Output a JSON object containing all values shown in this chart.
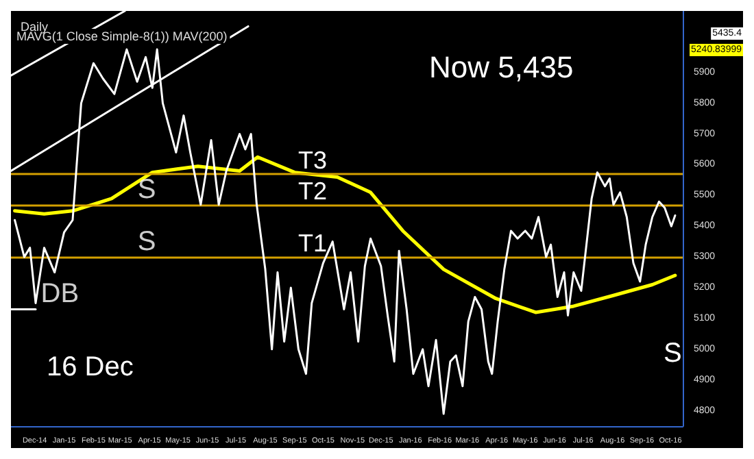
{
  "chart_data": {
    "type": "line",
    "title": "Daily",
    "subtitle": "MAVG(1 Close Simple-8(1)) MAV(200)",
    "xlim": [
      "2014-11-20",
      "2016-10-28"
    ],
    "xticks": [
      {
        "value": "2014-12-15",
        "label": "Dec-14"
      },
      {
        "value": "2015-01-15",
        "label": "Jan-15"
      },
      {
        "value": "2015-02-15",
        "label": "Feb-15"
      },
      {
        "value": "2015-03-15",
        "label": "Mar-15"
      },
      {
        "value": "2015-04-15",
        "label": "Apr-15"
      },
      {
        "value": "2015-05-15",
        "label": "May-15"
      },
      {
        "value": "2015-06-15",
        "label": "Jun-15"
      },
      {
        "value": "2015-07-15",
        "label": "Jul-15"
      },
      {
        "value": "2015-08-15",
        "label": "Aug-15"
      },
      {
        "value": "2015-09-15",
        "label": "Sep-15"
      },
      {
        "value": "2015-10-15",
        "label": "Oct-15"
      },
      {
        "value": "2015-11-15",
        "label": "Nov-15"
      },
      {
        "value": "2015-12-15",
        "label": "Dec-15"
      },
      {
        "value": "2016-01-15",
        "label": "Jan-16"
      },
      {
        "value": "2016-02-15",
        "label": "Feb-16"
      },
      {
        "value": "2016-03-15",
        "label": "Mar-16"
      },
      {
        "value": "2016-04-15",
        "label": "Apr-16"
      },
      {
        "value": "2016-05-15",
        "label": "May-16"
      },
      {
        "value": "2016-06-15",
        "label": "Jun-16"
      },
      {
        "value": "2016-07-15",
        "label": "Jul-16"
      },
      {
        "value": "2016-08-15",
        "label": "Aug-16"
      },
      {
        "value": "2016-09-15",
        "label": "Sep-16"
      },
      {
        "value": "2016-10-15",
        "label": "Oct-16"
      }
    ],
    "ylim": [
      4750,
      6100
    ],
    "yticks": [
      4800,
      4900,
      5000,
      5100,
      5200,
      5300,
      5400,
      5500,
      5600,
      5700,
      5800,
      5900
    ],
    "grid": false,
    "marker": "none",
    "line_style": "solid",
    "series": [
      {
        "color": "#ffffff",
        "x": [
          "2014-11-24",
          "2014-12-04",
          "2014-12-10",
          "2014-12-16",
          "2014-12-25",
          "2015-01-05",
          "2015-01-15",
          "2015-01-24",
          "2015-02-02",
          "2015-02-15",
          "2015-02-25",
          "2015-03-09",
          "2015-03-22",
          "2015-04-02",
          "2015-04-11",
          "2015-04-18",
          "2015-04-23",
          "2015-04-29",
          "2015-05-06",
          "2015-05-13",
          "2015-05-21",
          "2015-05-28",
          "2015-06-08",
          "2015-06-19",
          "2015-06-27",
          "2015-07-05",
          "2015-07-19",
          "2015-07-25",
          "2015-07-31",
          "2015-08-06",
          "2015-08-15",
          "2015-08-22",
          "2015-08-28",
          "2015-09-04",
          "2015-09-11",
          "2015-09-19",
          "2015-09-27",
          "2015-10-03",
          "2015-10-15",
          "2015-10-25",
          "2015-11-06",
          "2015-11-13",
          "2015-11-21",
          "2015-11-28",
          "2015-12-04",
          "2015-12-15",
          "2015-12-22",
          "2015-12-29",
          "2016-01-03",
          "2016-01-11",
          "2016-01-18",
          "2016-01-28",
          "2016-02-03",
          "2016-02-11",
          "2016-02-19",
          "2016-02-26",
          "2016-03-03",
          "2016-03-10",
          "2016-03-16",
          "2016-03-23",
          "2016-03-30",
          "2016-04-06",
          "2016-04-10",
          "2016-04-16",
          "2016-04-23",
          "2016-04-30",
          "2016-05-07",
          "2016-05-15",
          "2016-05-22",
          "2016-05-29",
          "2016-06-06",
          "2016-06-11",
          "2016-06-18",
          "2016-06-25",
          "2016-06-29",
          "2016-07-05",
          "2016-07-13",
          "2016-07-20",
          "2016-07-24",
          "2016-07-30",
          "2016-08-07",
          "2016-08-12",
          "2016-08-16",
          "2016-08-23",
          "2016-08-30",
          "2016-09-06",
          "2016-09-13",
          "2016-09-19",
          "2016-09-26",
          "2016-10-03",
          "2016-10-09",
          "2016-10-16",
          "2016-10-20"
        ],
        "values": [
          5420,
          5300,
          5330,
          5150,
          5330,
          5250,
          5380,
          5420,
          5800,
          5930,
          5880,
          5830,
          5975,
          5870,
          5950,
          5850,
          5975,
          5800,
          5720,
          5640,
          5760,
          5640,
          5470,
          5680,
          5470,
          5580,
          5700,
          5650,
          5700,
          5470,
          5260,
          5000,
          5250,
          5025,
          5200,
          5000,
          4920,
          5150,
          5280,
          5350,
          5130,
          5250,
          5025,
          5270,
          5360,
          5270,
          5110,
          4960,
          5320,
          5130,
          4920,
          5000,
          4880,
          5030,
          4790,
          4960,
          4980,
          4880,
          5090,
          5170,
          5130,
          4960,
          4920,
          5090,
          5260,
          5385,
          5360,
          5385,
          5360,
          5430,
          5300,
          5340,
          5170,
          5250,
          5110,
          5250,
          5190,
          5380,
          5490,
          5575,
          5530,
          5555,
          5470,
          5510,
          5430,
          5280,
          5220,
          5340,
          5430,
          5480,
          5460,
          5400,
          5435
        ]
      },
      {
        "color": "#ffff00",
        "x": [
          "2014-11-24",
          "2014-12-25",
          "2015-01-24",
          "2015-03-06",
          "2015-04-18",
          "2015-06-05",
          "2015-07-19",
          "2015-08-07",
          "2015-09-15",
          "2015-10-30",
          "2015-12-04",
          "2016-01-07",
          "2016-02-19",
          "2016-04-14",
          "2016-05-26",
          "2016-07-05",
          "2016-08-16",
          "2016-09-26",
          "2016-10-20"
        ],
        "values": [
          5450,
          5440,
          5450,
          5490,
          5575,
          5595,
          5580,
          5625,
          5575,
          5560,
          5510,
          5385,
          5260,
          5165,
          5120,
          5140,
          5175,
          5210,
          5240
        ]
      },
      {
        "color": "#ffffff",
        "x": [
          "2014-11-20",
          "2015-03-20"
        ],
        "values": [
          5890,
          6100
        ]
      },
      {
        "color": "#ffffff",
        "x": [
          "2014-11-20",
          "2015-07-28"
        ],
        "values": [
          5580,
          6050
        ]
      },
      {
        "color": "#ffffff",
        "x": [
          "2014-11-20",
          "2014-12-16"
        ],
        "values": [
          5130,
          5130
        ]
      }
    ],
    "ref_lines": [
      {
        "axis": "y",
        "value": 5570,
        "label": "T3",
        "color": "#d4a000"
      },
      {
        "axis": "y",
        "value": 5470,
        "label": "T2",
        "color": "#d4a000"
      },
      {
        "axis": "y",
        "value": 5300,
        "label": "T1",
        "color": "#d4a000"
      }
    ],
    "annotations": [
      "Now 5,435",
      "5435.4",
      "5240.83999",
      {
        "text": "S",
        "x": "2015-04-01",
        "y": 5470
      },
      {
        "text": "S",
        "x": "2015-04-01",
        "y": 5300
      },
      "S",
      {
        "text": "DB",
        "x": "2014-12-20",
        "y": 5130
      },
      "16 Dec"
    ]
  }
}
